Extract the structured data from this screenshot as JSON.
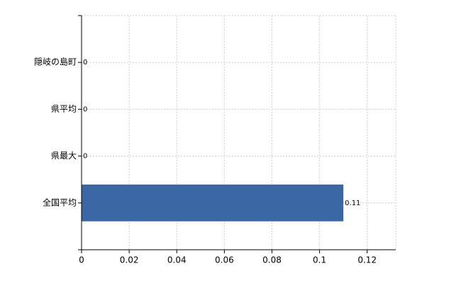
{
  "chart_data": {
    "type": "bar",
    "orientation": "horizontal",
    "categories": [
      "隠岐の島町",
      "県平均",
      "県最大",
      "全国平均"
    ],
    "values": [
      0,
      0,
      0,
      0.11
    ],
    "color": "#3a67a3",
    "xlim": [
      0,
      0.132
    ],
    "xticks": [
      0,
      0.02,
      0.04,
      0.06,
      0.08,
      0.1,
      0.12
    ],
    "grid": true
  }
}
